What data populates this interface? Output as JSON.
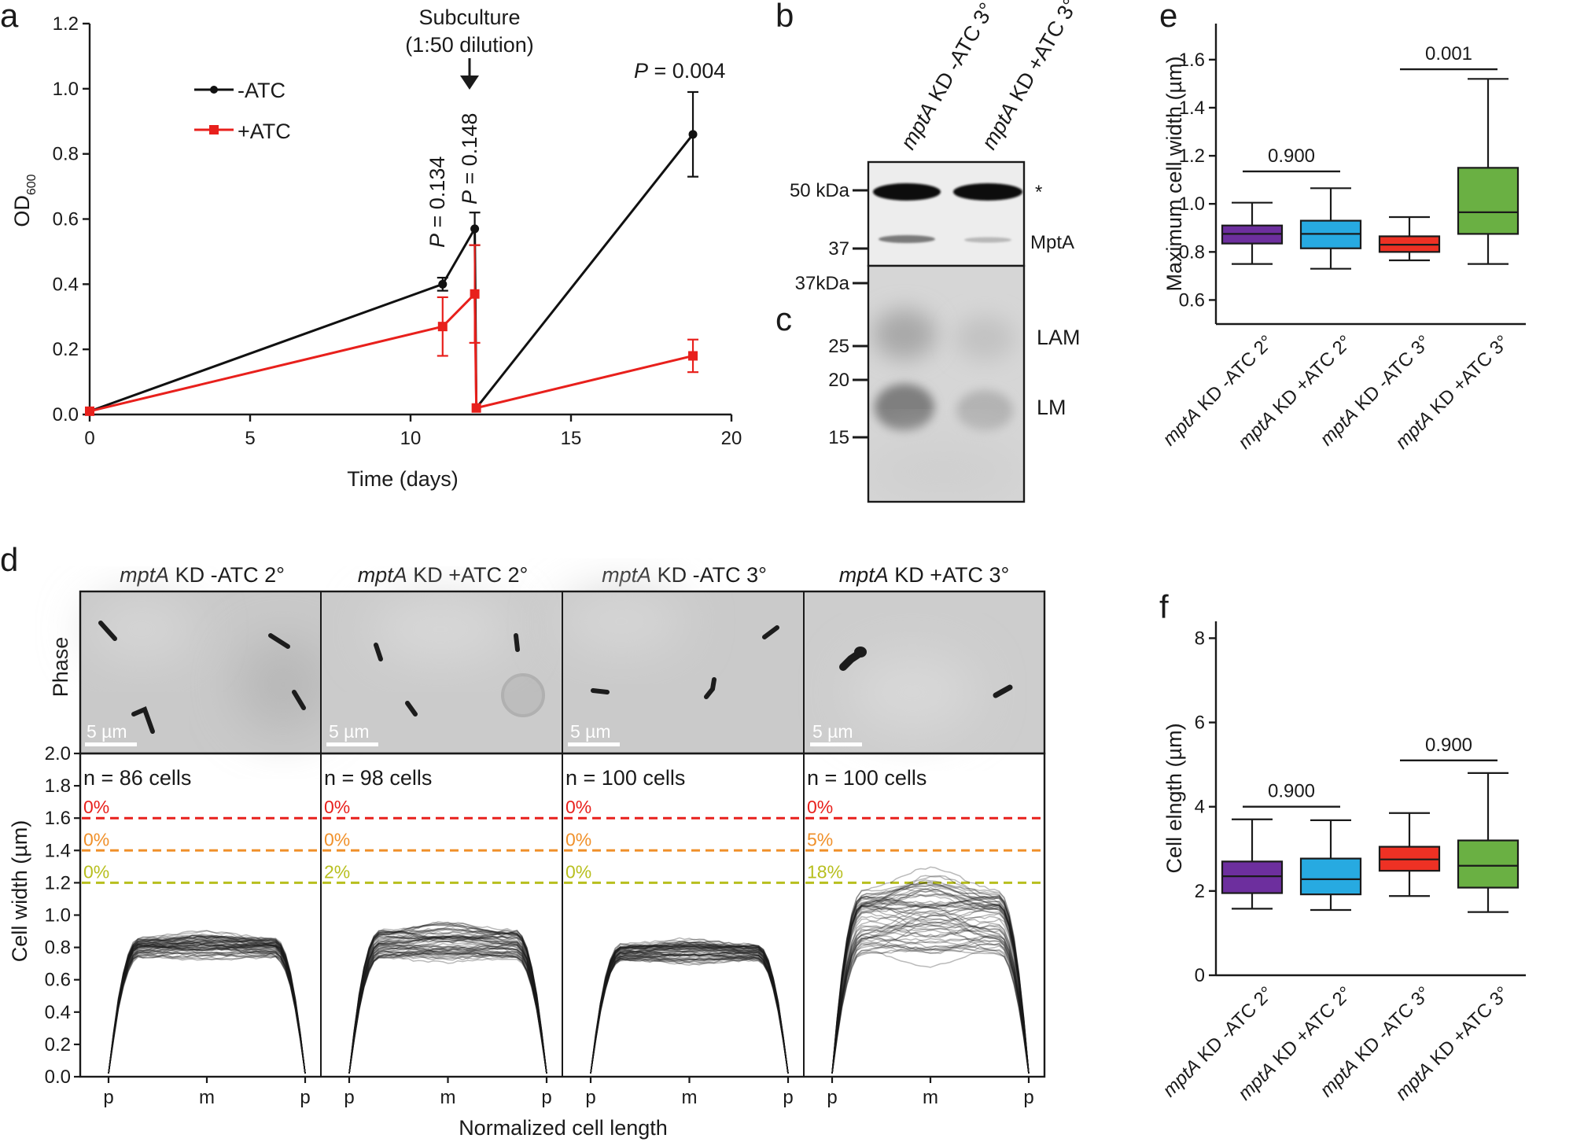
{
  "panel_labels": {
    "a": "a",
    "b": "b",
    "c": "c",
    "d": "d",
    "e": "e",
    "f": "f"
  },
  "chart_data": [
    {
      "panel": "a",
      "type": "line",
      "xlabel": "Time (days)",
      "ylabel": "OD",
      "ylabel_sub": "600",
      "xlim": [
        0,
        20
      ],
      "ylim": [
        0,
        1.2
      ],
      "xticks": [
        "0",
        "5",
        "10",
        "15",
        "20"
      ],
      "yticks": [
        "0.0",
        "0.2",
        "0.4",
        "0.6",
        "0.8",
        "1.0",
        "1.2"
      ],
      "series": [
        {
          "name": "-ATC",
          "color": "#111111",
          "marker": "circle",
          "x": [
            0,
            11,
            12,
            12.05,
            18.8
          ],
          "y": [
            0.01,
            0.4,
            0.57,
            0.02,
            0.86
          ],
          "err": [
            0,
            0.02,
            0.05,
            0,
            0.13
          ]
        },
        {
          "name": "+ATC",
          "color": "#e8201c",
          "marker": "square",
          "x": [
            0,
            11,
            12,
            12.05,
            18.8
          ],
          "y": [
            0.01,
            0.27,
            0.37,
            0.02,
            0.18
          ],
          "err": [
            0,
            0.09,
            0.15,
            0,
            0.05
          ]
        }
      ],
      "annotations": {
        "subculture_title": "Subculture",
        "subculture_detail": "(1:50 dilution)",
        "p_letter": "P",
        "p_values": [
          " = 0.134",
          " = 0.148",
          " = 0.004"
        ]
      }
    },
    {
      "panel": "b-c",
      "type": "other",
      "description_lanes": [
        {
          "italic": "mptA",
          "rest": " KD -ATC 3°"
        },
        {
          "italic": "mptA",
          "rest": " KD +ATC 3°"
        }
      ],
      "markers_b": [
        "50 kDa",
        "37"
      ],
      "bands_b": [
        "*",
        "MptA"
      ],
      "markers_c": [
        "37kDa",
        "25",
        "20",
        "15"
      ],
      "bands_c": [
        "LAM",
        "LM"
      ]
    },
    {
      "panel": "e",
      "type": "box",
      "ylabel": "Maximum cell width (µm)",
      "ylim": [
        0.5,
        1.75
      ],
      "yticks": [
        "0.6",
        "0.8",
        "1.0",
        "1.2",
        "1.4",
        "1.6"
      ],
      "categories": [
        {
          "italic": "mptA",
          "rest": " KD -ATC 2°"
        },
        {
          "italic": "mptA",
          "rest": " KD +ATC 2°"
        },
        {
          "italic": "mptA",
          "rest": " KD -ATC 3°"
        },
        {
          "italic": "mptA",
          "rest": " KD +ATC 3°"
        }
      ],
      "boxes": [
        {
          "min": 0.75,
          "q1": 0.835,
          "median": 0.875,
          "q3": 0.91,
          "max": 1.005,
          "color": "#6d2f9e"
        },
        {
          "min": 0.73,
          "q1": 0.815,
          "median": 0.875,
          "q3": 0.93,
          "max": 1.065,
          "color": "#27aae1"
        },
        {
          "min": 0.765,
          "q1": 0.8,
          "median": 0.83,
          "q3": 0.865,
          "max": 0.945,
          "color": "#ee3124"
        },
        {
          "min": 0.75,
          "q1": 0.875,
          "median": 0.965,
          "q3": 1.15,
          "max": 1.52,
          "color": "#6ab043"
        }
      ],
      "comparisons": [
        {
          "pair": [
            0,
            1
          ],
          "label": "0.900",
          "y": 1.135
        },
        {
          "pair": [
            2,
            3
          ],
          "label": "0.001",
          "y": 1.56
        }
      ]
    },
    {
      "panel": "f",
      "type": "box",
      "ylabel": "Cell elngth (µm)",
      "ylim": [
        0,
        8.4
      ],
      "yticks": [
        "0",
        "2",
        "4",
        "6",
        "8"
      ],
      "categories": [
        {
          "italic": "mptA",
          "rest": " KD -ATC 2°"
        },
        {
          "italic": "mptA",
          "rest": " KD +ATC 2°"
        },
        {
          "italic": "mptA",
          "rest": " KD -ATC 3°"
        },
        {
          "italic": "mptA",
          "rest": " KD +ATC 3°"
        }
      ],
      "boxes": [
        {
          "min": 1.58,
          "q1": 1.95,
          "median": 2.35,
          "q3": 2.7,
          "max": 3.7,
          "color": "#6d2f9e"
        },
        {
          "min": 1.55,
          "q1": 1.92,
          "median": 2.28,
          "q3": 2.77,
          "max": 3.68,
          "color": "#27aae1"
        },
        {
          "min": 1.88,
          "q1": 2.48,
          "median": 2.75,
          "q3": 3.05,
          "max": 3.85,
          "color": "#ee3124"
        },
        {
          "min": 1.5,
          "q1": 2.08,
          "median": 2.6,
          "q3": 3.2,
          "max": 4.8,
          "color": "#6ab043"
        }
      ],
      "comparisons": [
        {
          "pair": [
            0,
            1
          ],
          "label": "0.900",
          "y": 4.0
        },
        {
          "pair": [
            2,
            3
          ],
          "label": "0.900",
          "y": 5.1
        }
      ]
    },
    {
      "panel": "d",
      "type": "line",
      "ylabel": "Cell width (µm)",
      "xlabel": "Normalized cell length",
      "row_label": "Phase",
      "scalebar": "5 µm",
      "ylim": [
        0,
        2.0
      ],
      "yticks": [
        "0.0",
        "0.2",
        "0.4",
        "0.6",
        "0.8",
        "1.0",
        "1.2",
        "1.4",
        "1.6",
        "1.8",
        "2.0"
      ],
      "xticks": [
        "p",
        "m",
        "p"
      ],
      "thresholds": [
        {
          "value": 1.6,
          "color": "#e8201c"
        },
        {
          "value": 1.4,
          "color": "#f0902a"
        },
        {
          "value": 1.2,
          "color": "#b8bf1e"
        }
      ],
      "columns": [
        {
          "title_italic": "mptA",
          "title_rest": " KD -ATC 2°",
          "n": "n = 86 cells",
          "pcts": [
            "0%",
            "0%",
            "0%"
          ],
          "plateau": 0.8,
          "spread": 0.06,
          "ncurves": 86
        },
        {
          "title_italic": "mptA",
          "title_rest": " KD +ATC 2°",
          "n": "n = 98 cells",
          "pcts": [
            "0%",
            "0%",
            "2%"
          ],
          "plateau": 0.82,
          "spread": 0.09,
          "ncurves": 98
        },
        {
          "title_italic": "mptA",
          "title_rest": " KD -ATC 3°",
          "n": "n = 100 cells",
          "pcts": [
            "0%",
            "0%",
            "0%"
          ],
          "plateau": 0.77,
          "spread": 0.05,
          "ncurves": 100
        },
        {
          "title_italic": "mptA",
          "title_rest": " KD +ATC 3°",
          "n": "n = 100 cells",
          "pcts": [
            "0%",
            "5%",
            "18%"
          ],
          "plateau": 0.96,
          "spread": 0.2,
          "ncurves": 100
        }
      ]
    }
  ]
}
